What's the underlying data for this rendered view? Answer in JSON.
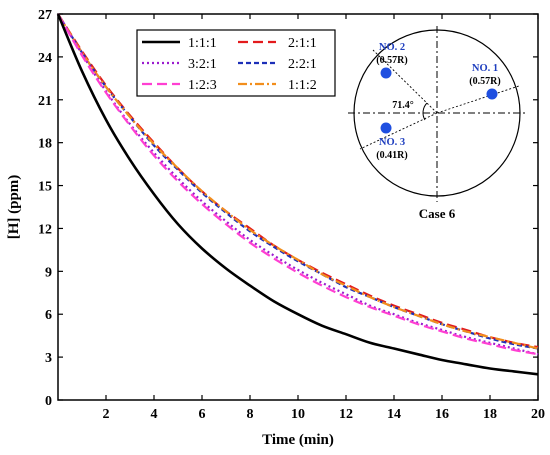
{
  "chart_data": {
    "type": "line",
    "xlabel": "Time (min)",
    "ylabel": "[H] (ppm)",
    "xlim": [
      0,
      20
    ],
    "ylim": [
      0,
      27
    ],
    "xticks": [
      2,
      4,
      6,
      8,
      10,
      12,
      14,
      16,
      18,
      20
    ],
    "yticks": [
      0,
      3,
      6,
      9,
      12,
      15,
      18,
      21,
      24,
      27
    ],
    "grid": false,
    "legend_placement": "top-left",
    "x": [
      0,
      1,
      2,
      3,
      4,
      5,
      6,
      7,
      8,
      9,
      10,
      11,
      12,
      13,
      14,
      15,
      16,
      17,
      18,
      19,
      20
    ],
    "series": [
      {
        "name": "1:1:1",
        "color": "#000000",
        "dash": "solid",
        "values": [
          27.0,
          23.0,
          19.6,
          16.8,
          14.4,
          12.3,
          10.6,
          9.2,
          8.0,
          6.9,
          6.0,
          5.2,
          4.6,
          4.0,
          3.6,
          3.2,
          2.8,
          2.5,
          2.2,
          2.0,
          1.8
        ]
      },
      {
        "name": "2:1:1",
        "color": "#e31a1c",
        "dash": "dashed",
        "values": [
          27.0,
          24.4,
          22.0,
          19.9,
          18.0,
          16.2,
          14.6,
          13.2,
          12.0,
          10.8,
          9.8,
          8.9,
          8.1,
          7.3,
          6.6,
          6.0,
          5.4,
          4.9,
          4.4,
          4.0,
          3.7
        ]
      },
      {
        "name": "3:2:1",
        "color": "#9b1ccf",
        "dash": "dotted",
        "values": [
          27.0,
          24.2,
          21.6,
          19.3,
          17.3,
          15.5,
          13.9,
          12.5,
          11.2,
          10.1,
          9.1,
          8.2,
          7.4,
          6.6,
          6.0,
          5.4,
          4.9,
          4.4,
          4.0,
          3.6,
          3.2
        ]
      },
      {
        "name": "2:2:1",
        "color": "#1c2fb8",
        "dash": "short-dash",
        "values": [
          27.0,
          24.3,
          21.9,
          19.8,
          17.8,
          16.1,
          14.5,
          13.1,
          11.8,
          10.7,
          9.7,
          8.8,
          7.9,
          7.2,
          6.5,
          5.9,
          5.3,
          4.8,
          4.3,
          3.9,
          3.6
        ]
      },
      {
        "name": "1:2:3",
        "color": "#ff3fd2",
        "dash": "dashed",
        "values": [
          27.0,
          24.1,
          21.5,
          19.2,
          17.1,
          15.3,
          13.7,
          12.3,
          11.0,
          9.9,
          8.9,
          8.0,
          7.2,
          6.5,
          5.9,
          5.3,
          4.8,
          4.3,
          3.9,
          3.5,
          3.2
        ]
      },
      {
        "name": "1:1:2",
        "color": "#f28e1c",
        "dash": "dash-dot",
        "values": [
          27.0,
          24.3,
          21.9,
          19.8,
          17.9,
          16.2,
          14.6,
          13.2,
          11.9,
          10.8,
          9.8,
          8.8,
          8.0,
          7.2,
          6.5,
          5.9,
          5.3,
          4.8,
          4.4,
          4.0,
          3.6
        ]
      }
    ],
    "inset": {
      "case_label": "Case 6",
      "angle_label": "71.4°",
      "points": [
        {
          "label": "NO. 1",
          "radius": "(0.57R)"
        },
        {
          "label": "NO. 2",
          "radius": "(0.57R)"
        },
        {
          "label": "NO. 3",
          "radius": "(0.41R)"
        }
      ],
      "point_color": "#1f4fe0"
    }
  }
}
